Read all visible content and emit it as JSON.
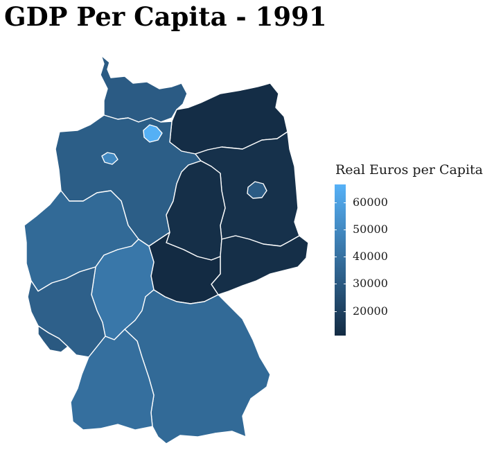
{
  "title": "GDP Per Capita - 1991",
  "legend": {
    "title": "Real Euros per Capita",
    "min": 11000,
    "max": 66500,
    "ticks": [
      {
        "value": 60000,
        "label": "60000"
      },
      {
        "value": 50000,
        "label": "50000"
      },
      {
        "value": 40000,
        "label": "40000"
      },
      {
        "value": 30000,
        "label": "30000"
      },
      {
        "value": 20000,
        "label": "20000"
      }
    ],
    "low_color": "#132b43",
    "high_color": "#56b1f7"
  },
  "states": [
    {
      "id": "schleswig-holstein",
      "value": 31000
    },
    {
      "id": "hamburg",
      "value": 66000
    },
    {
      "id": "niedersachsen",
      "value": 32000
    },
    {
      "id": "bremen",
      "value": 50000
    },
    {
      "id": "mecklenburg-vorpommern",
      "value": 12000
    },
    {
      "id": "brandenburg",
      "value": 13500
    },
    {
      "id": "berlin",
      "value": 31000
    },
    {
      "id": "sachsen-anhalt",
      "value": 12500
    },
    {
      "id": "sachsen",
      "value": 12500
    },
    {
      "id": "thueringen",
      "value": 11000
    },
    {
      "id": "nordrhein-westfalen",
      "value": 37000
    },
    {
      "id": "hessen",
      "value": 42500
    },
    {
      "id": "rheinland-pfalz",
      "value": 33000
    },
    {
      "id": "saarland",
      "value": 30000
    },
    {
      "id": "baden-wuerttemberg",
      "value": 39000
    },
    {
      "id": "bayern",
      "value": 37000
    }
  ]
}
